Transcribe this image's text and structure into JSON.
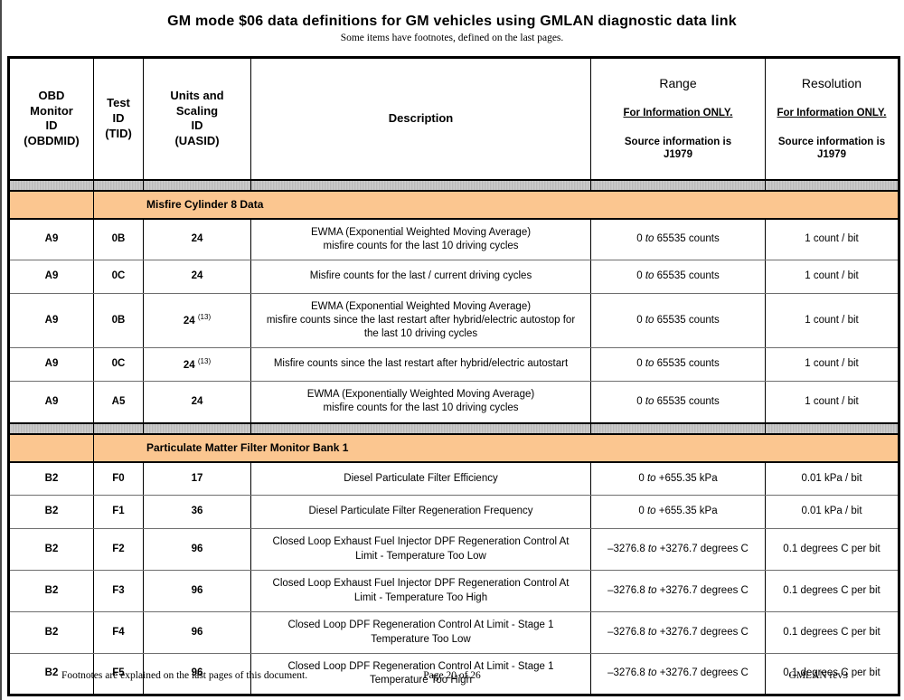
{
  "page": {
    "title": "GM mode $06 data definitions for GM vehicles using GMLAN diagnostic data link",
    "subtitle": "Some items have footnotes, defined on the last pages."
  },
  "colors": {
    "section_bg": "#FBC690",
    "separator_bg": "#C6C6C6",
    "border": "#000000"
  },
  "table": {
    "headers": {
      "obdmid": "OBD\nMonitor\nID\n(OBDMID)",
      "tid": "Test\nID\n(TID)",
      "uasid": "Units and\nScaling\nID\n(UASID)",
      "description": "Description",
      "range": {
        "title": "Range",
        "note": "For Information ONLY.",
        "source": "Source information is\nJ1979"
      },
      "resolution": {
        "title": "Resolution",
        "note": "For Information ONLY.",
        "source": "Source information is\nJ1979"
      }
    },
    "rows": [
      {
        "type": "separator"
      },
      {
        "type": "section",
        "label": "Misfire Cylinder 8 Data"
      },
      {
        "type": "data",
        "obdmid": "A9",
        "tid": "0B",
        "uasid": "24",
        "desc": [
          "EWMA (Exponential Weighted Moving Average)",
          "misfire counts for the last 10 driving cycles"
        ],
        "range": "0 to 65535 counts",
        "resolution": "1 count / bit"
      },
      {
        "type": "data",
        "obdmid": "A9",
        "tid": "0C",
        "uasid": "24",
        "desc": [
          "Misfire counts for the last / current driving cycles"
        ],
        "range": "0 to 65535 counts",
        "resolution": "1 count / bit"
      },
      {
        "type": "data",
        "obdmid": "A9",
        "tid": "0B",
        "uasid": "24",
        "uasid_sup": "(13)",
        "desc": [
          "EWMA (Exponential Weighted Moving Average)",
          "misfire counts since the last restart after hybrid/electric autostop for",
          "the last 10 driving cycles"
        ],
        "range": "0 to 65535 counts",
        "resolution": "1 count / bit"
      },
      {
        "type": "data",
        "obdmid": "A9",
        "tid": "0C",
        "uasid": "24",
        "uasid_sup": "(13)",
        "desc": [
          "Misfire counts since the last restart after hybrid/electric autostart"
        ],
        "range": "0 to 65535 counts",
        "resolution": "1 count / bit"
      },
      {
        "type": "data",
        "obdmid": "A9",
        "tid": "A5",
        "uasid": "24",
        "desc": [
          "EWMA (Exponentially Weighted Moving Average)",
          "misfire counts for the last 10 driving cycles"
        ],
        "range": "0 to 65535 counts",
        "resolution": "1 count / bit"
      },
      {
        "type": "separator"
      },
      {
        "type": "section",
        "label": "Particulate Matter Filter Monitor Bank 1"
      },
      {
        "type": "data",
        "obdmid": "B2",
        "tid": "F0",
        "uasid": "17",
        "desc": [
          "Diesel Particulate Filter Efficiency"
        ],
        "range": "0 to +655.35 kPa",
        "resolution": "0.01 kPa / bit"
      },
      {
        "type": "data",
        "obdmid": "B2",
        "tid": "F1",
        "uasid": "36",
        "desc": [
          "Diesel Particulate Filter Regeneration Frequency"
        ],
        "range": "0 to +655.35 kPa",
        "resolution": "0.01 kPa / bit"
      },
      {
        "type": "data",
        "obdmid": "B2",
        "tid": "F2",
        "uasid": "96",
        "desc": [
          "Closed Loop Exhaust Fuel Injector DPF Regeneration Control At",
          "Limit - Temperature Too Low"
        ],
        "range": "–3276.8 to +3276.7 degrees C",
        "resolution": "0.1 degrees C per bit"
      },
      {
        "type": "data",
        "obdmid": "B2",
        "tid": "F3",
        "uasid": "96",
        "desc": [
          "Closed Loop Exhaust Fuel Injector DPF Regeneration Control At",
          "Limit - Temperature Too High"
        ],
        "range": "–3276.8 to +3276.7 degrees C",
        "resolution": "0.1 degrees C per bit"
      },
      {
        "type": "data",
        "obdmid": "B2",
        "tid": "F4",
        "uasid": "96",
        "desc": [
          "Closed Loop DPF Regeneration Control At Limit - Stage 1",
          "Temperature Too Low"
        ],
        "range": "–3276.8 to +3276.7 degrees C",
        "resolution": "0.1 degrees C per bit"
      },
      {
        "type": "data",
        "obdmid": "B2",
        "tid": "F5",
        "uasid": "96",
        "desc": [
          "Closed Loop DPF Regeneration Control At Limit - Stage 1",
          "Temperature Too High"
        ],
        "range": "–3276.8 to +3276.7 degrees C",
        "resolution": "0.1 degrees C per bit"
      }
    ]
  },
  "footer": {
    "left": "Footnotes are explained on the last pages of this document.",
    "center": "Page 20 of 26",
    "right": "GMLAN rev3"
  }
}
